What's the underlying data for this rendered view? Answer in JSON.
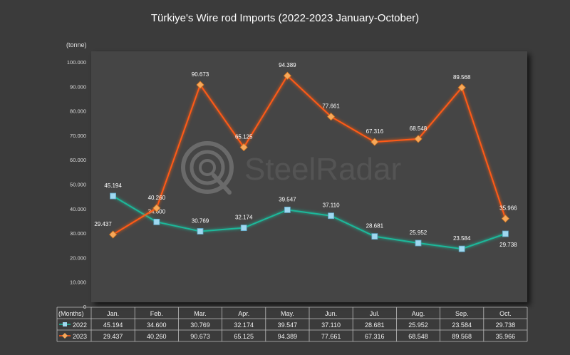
{
  "chart_data": {
    "type": "line",
    "title": "Türkiye's Wire rod Imports (2022-2023 January-October)",
    "ylabel": "(tonne)",
    "table_header": "(Months)",
    "watermark": "SteelRadar",
    "categories": [
      "Jan.",
      "Feb.",
      "Mar.",
      "Apr.",
      "May.",
      "Jun.",
      "Jul.",
      "Aug.",
      "Sep.",
      "Oct."
    ],
    "ylim": [
      0,
      100000
    ],
    "yticks": [
      "0",
      "10.000",
      "20.000",
      "30.000",
      "40.000",
      "50.000",
      "60.000",
      "70.000",
      "80.000",
      "90.000",
      "100.000"
    ],
    "grid": false,
    "series": [
      {
        "name": "2022",
        "color": "#1fb89a",
        "marker": "square",
        "marker_color": "#9fd8f0",
        "values": [
          45194,
          34600,
          30769,
          32174,
          39547,
          37110,
          28681,
          25952,
          23584,
          29738
        ],
        "labels": [
          "45.194",
          "34.600",
          "30.769",
          "32.174",
          "39.547",
          "37.110",
          "28.681",
          "25.952",
          "23.584",
          "29.738"
        ]
      },
      {
        "name": "2023",
        "color": "#ff5a14",
        "marker": "diamond",
        "marker_color": "#f7a85a",
        "values": [
          29437,
          40260,
          90673,
          65125,
          94389,
          77661,
          67316,
          68548,
          89568,
          35966
        ],
        "labels": [
          "29.437",
          "40.260",
          "90.673",
          "65.125",
          "94.389",
          "77.661",
          "67.316",
          "68.548",
          "89.568",
          "35.966"
        ]
      }
    ]
  }
}
